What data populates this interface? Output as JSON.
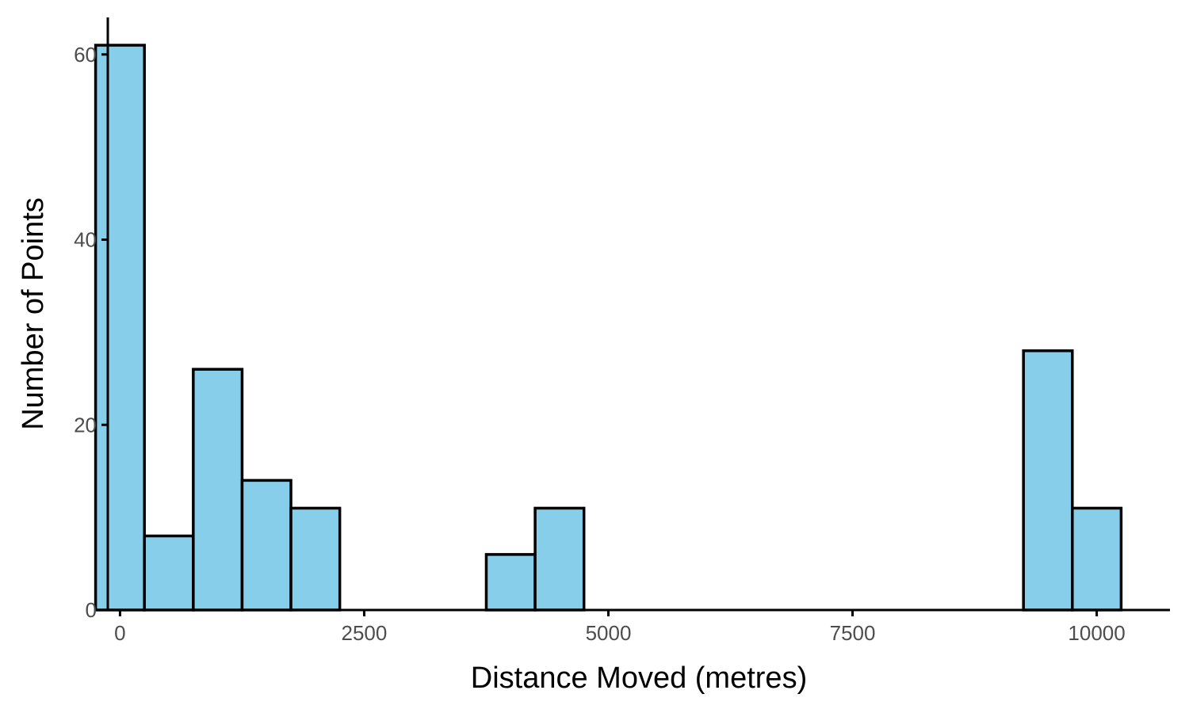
{
  "chart_data": {
    "type": "bar",
    "subtype": "histogram",
    "xlabel": "Distance Moved (metres)",
    "ylabel": "Number of Points",
    "xlim": [
      -125,
      10750
    ],
    "ylim": [
      0,
      64
    ],
    "x_ticks": [
      0,
      2500,
      5000,
      7500,
      10000
    ],
    "y_ticks": [
      0,
      20,
      40,
      60
    ],
    "bin_width": 500,
    "bins": [
      {
        "start": -250,
        "end": 250,
        "count": 61
      },
      {
        "start": 250,
        "end": 750,
        "count": 8
      },
      {
        "start": 750,
        "end": 1250,
        "count": 26
      },
      {
        "start": 1250,
        "end": 1750,
        "count": 14
      },
      {
        "start": 1750,
        "end": 2250,
        "count": 11
      },
      {
        "start": 3750,
        "end": 4250,
        "count": 6
      },
      {
        "start": 4250,
        "end": 4750,
        "count": 11
      },
      {
        "start": 9250,
        "end": 9750,
        "count": 28
      },
      {
        "start": 9750,
        "end": 10250,
        "count": 11
      }
    ],
    "bar_color": "#87CEEB",
    "bar_outline": "#000000",
    "grid": false,
    "legend": "none"
  }
}
